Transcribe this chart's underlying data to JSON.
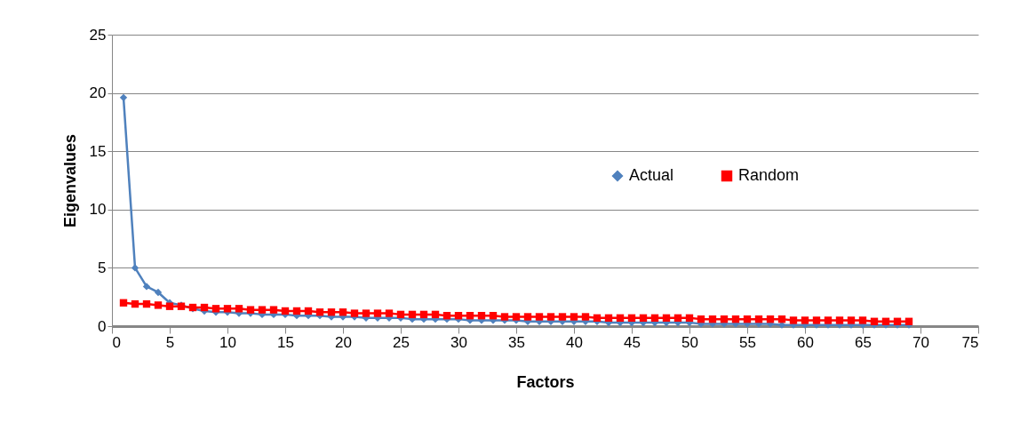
{
  "chart_data": {
    "type": "line",
    "xlabel": "Factors",
    "ylabel": "Eigenvalues",
    "x": [
      1,
      2,
      3,
      4,
      5,
      6,
      7,
      8,
      9,
      10,
      11,
      12,
      13,
      14,
      15,
      16,
      17,
      18,
      19,
      20,
      21,
      22,
      23,
      24,
      25,
      26,
      27,
      28,
      29,
      30,
      31,
      32,
      33,
      34,
      35,
      36,
      37,
      38,
      39,
      40,
      41,
      42,
      43,
      44,
      45,
      46,
      47,
      48,
      49,
      50,
      51,
      52,
      53,
      54,
      55,
      56,
      57,
      58,
      59,
      60,
      61,
      62,
      63,
      64,
      65,
      66,
      67,
      68,
      69
    ],
    "xlim": [
      0,
      75
    ],
    "xticks": [
      0,
      5,
      10,
      15,
      20,
      25,
      30,
      35,
      40,
      45,
      50,
      55,
      60,
      65,
      70,
      75
    ],
    "ylim": [
      0,
      25
    ],
    "yticks": [
      0,
      5,
      10,
      15,
      20,
      25
    ],
    "grid": "y",
    "legend": "right",
    "series": [
      {
        "name": "Actual",
        "color": "#4f81bd",
        "marker": "diamond",
        "values": [
          19.6,
          5.0,
          3.4,
          2.9,
          2.0,
          1.8,
          1.5,
          1.3,
          1.2,
          1.2,
          1.1,
          1.1,
          1.0,
          1.0,
          1.0,
          0.9,
          0.9,
          0.9,
          0.8,
          0.8,
          0.8,
          0.7,
          0.7,
          0.7,
          0.7,
          0.6,
          0.6,
          0.6,
          0.6,
          0.6,
          0.5,
          0.5,
          0.5,
          0.5,
          0.5,
          0.4,
          0.4,
          0.4,
          0.4,
          0.4,
          0.4,
          0.4,
          0.3,
          0.3,
          0.3,
          0.3,
          0.3,
          0.3,
          0.3,
          0.3,
          0.2,
          0.2,
          0.2,
          0.2,
          0.2,
          0.2,
          0.2,
          0.1,
          0.1,
          0.1,
          0.1,
          0.1,
          0.1,
          0.1,
          0.1,
          0.1,
          0.1,
          0.1,
          0.1
        ]
      },
      {
        "name": "Random",
        "color": "#ff0000",
        "marker": "square",
        "values": [
          2.0,
          1.9,
          1.9,
          1.8,
          1.7,
          1.7,
          1.6,
          1.6,
          1.5,
          1.5,
          1.5,
          1.4,
          1.4,
          1.4,
          1.3,
          1.3,
          1.3,
          1.2,
          1.2,
          1.2,
          1.1,
          1.1,
          1.1,
          1.1,
          1.0,
          1.0,
          1.0,
          1.0,
          0.9,
          0.9,
          0.9,
          0.9,
          0.9,
          0.8,
          0.8,
          0.8,
          0.8,
          0.8,
          0.8,
          0.8,
          0.8,
          0.7,
          0.7,
          0.7,
          0.7,
          0.7,
          0.7,
          0.7,
          0.7,
          0.7,
          0.6,
          0.6,
          0.6,
          0.6,
          0.6,
          0.6,
          0.6,
          0.6,
          0.5,
          0.5,
          0.5,
          0.5,
          0.5,
          0.5,
          0.5,
          0.4,
          0.4,
          0.4,
          0.4
        ]
      }
    ]
  }
}
